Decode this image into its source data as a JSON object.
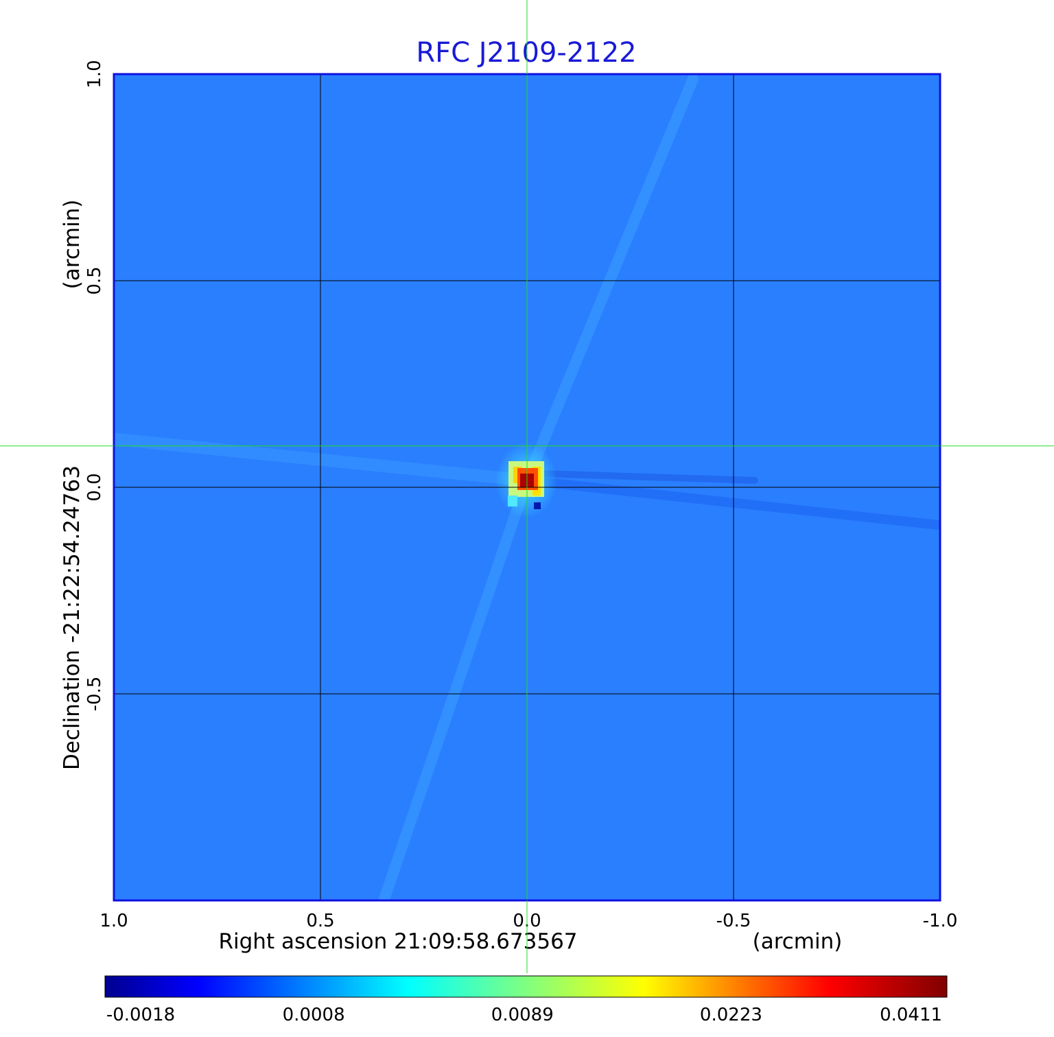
{
  "chart_data": {
    "type": "heatmap",
    "title": "RFC J2109-2122",
    "xlabel": "Right ascension  21:09:58.673567",
    "xunit": "(arcmin)",
    "ylabel": "Declination  -21:22:54.24763",
    "yunit": "(arcmin)",
    "xlim": [
      1.0,
      -1.0
    ],
    "ylim": [
      -1.0,
      1.0
    ],
    "x_ticks": [
      {
        "value": 1.0,
        "label": "1.0"
      },
      {
        "value": 0.5,
        "label": "0.5"
      },
      {
        "value": 0.0,
        "label": "0.0"
      },
      {
        "value": -0.5,
        "label": "-0.5"
      },
      {
        "value": -1.0,
        "label": "-1.0"
      }
    ],
    "y_ticks": [
      {
        "value": 1.0,
        "label": "1.0"
      },
      {
        "value": 0.5,
        "label": "0.5"
      },
      {
        "value": 0.0,
        "label": "0.0"
      },
      {
        "value": -0.5,
        "label": "-0.5"
      }
    ],
    "grid": true,
    "colormap": "jet",
    "colorbar_ticks": [
      "-0.0018",
      "0.0008",
      "0.0089",
      "0.0223",
      "0.0411"
    ],
    "colorbar_range": [
      -0.0018,
      0.0411
    ],
    "peak": {
      "x": 0.0,
      "y": 0.1,
      "value": 0.0411
    },
    "crosshair": {
      "x": 0.0,
      "y": 0.1
    }
  },
  "colors": {
    "title": "#1a1ad6",
    "frame": "#1010e0",
    "background": "#2a7fff",
    "grid": "#000000",
    "crosshair": "#22dd22"
  }
}
